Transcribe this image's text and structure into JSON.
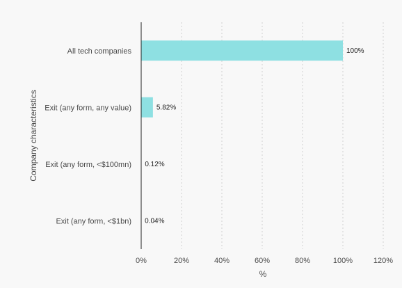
{
  "chart_data": {
    "type": "bar",
    "orientation": "horizontal",
    "categories": [
      "All tech companies",
      "Exit (any form, any value)",
      "Exit (any form, <$100mn)",
      "Exit (any form, <$1bn)"
    ],
    "values": [
      100,
      5.82,
      0.12,
      0.04
    ],
    "value_labels": [
      "100%",
      "5.82%",
      "0.12%",
      "0.04%"
    ],
    "xlabel": "%",
    "ylabel": "Company characteristics",
    "xlim": [
      0,
      120
    ],
    "xticks": [
      0,
      20,
      40,
      60,
      80,
      100,
      120
    ],
    "xtick_labels": [
      "0%",
      "20%",
      "40%",
      "60%",
      "80%",
      "100%",
      "120%"
    ],
    "grid": "vertical dotted",
    "colors": {
      "bar": "#8ee0e2",
      "axis": "#222222",
      "grid": "#cfcfcf",
      "background": "#f8f8f8"
    }
  }
}
